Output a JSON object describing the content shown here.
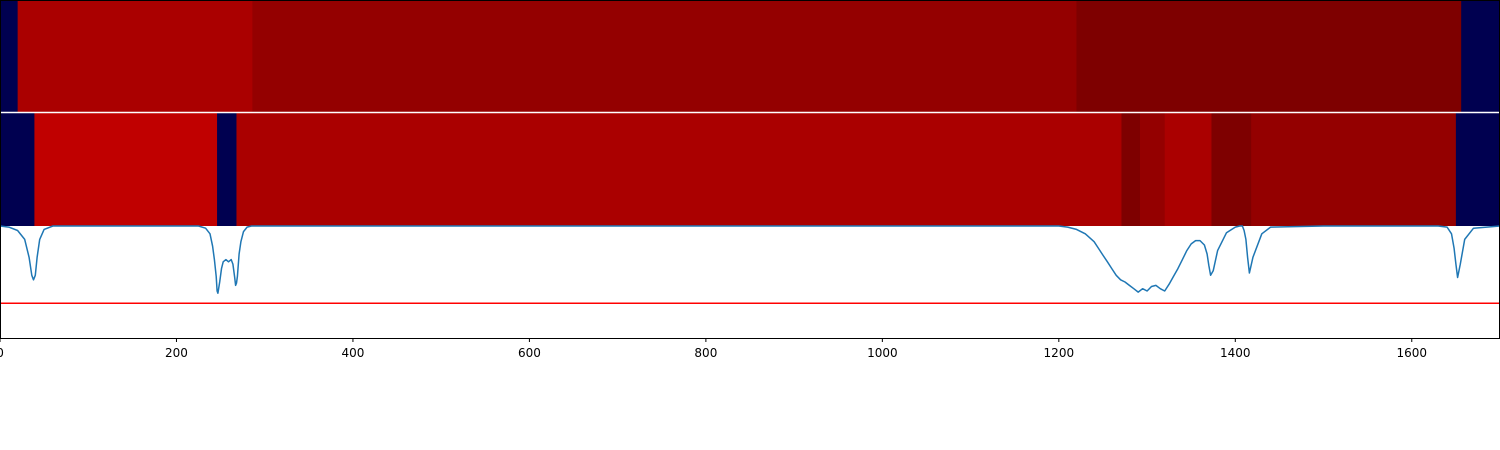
{
  "chart_data": {
    "type": "heatmap",
    "x_ticks": [
      0,
      200,
      400,
      600,
      800,
      1000,
      1200,
      1400,
      1600
    ],
    "x_tick_labels": [
      "0",
      "200",
      "400",
      "600",
      "800",
      "1000",
      "1200",
      "1400",
      "1600"
    ],
    "xlim": [
      0,
      1700
    ],
    "colors": {
      "background_segment": "#000050",
      "separator": "#ffffff",
      "line_trace": "#1f77b4",
      "threshold_line": "#ff0000",
      "axes": "#000000"
    },
    "heatmap_rows": [
      {
        "segments": [
          {
            "start": 0,
            "end": 20,
            "color": "#000050"
          },
          {
            "start": 20,
            "end": 286,
            "color": "#aa0000"
          },
          {
            "start": 286,
            "end": 1220,
            "color": "#940000"
          },
          {
            "start": 1220,
            "end": 1656,
            "color": "#7e0000"
          },
          {
            "start": 1656,
            "end": 1700,
            "color": "#000050"
          }
        ]
      },
      {
        "segments": [
          {
            "start": 0,
            "end": 39,
            "color": "#000050"
          },
          {
            "start": 39,
            "end": 246,
            "color": "#c00000"
          },
          {
            "start": 246,
            "end": 268,
            "color": "#000050"
          },
          {
            "start": 268,
            "end": 1271,
            "color": "#aa0000"
          },
          {
            "start": 1271,
            "end": 1292,
            "color": "#7e0000"
          },
          {
            "start": 1292,
            "end": 1320,
            "color": "#940000"
          },
          {
            "start": 1320,
            "end": 1373,
            "color": "#aa0000"
          },
          {
            "start": 1373,
            "end": 1418,
            "color": "#7e0000"
          },
          {
            "start": 1418,
            "end": 1650,
            "color": "#940000"
          },
          {
            "start": 1650,
            "end": 1700,
            "color": "#000050"
          }
        ]
      }
    ],
    "line_series": {
      "ylim": [
        0,
        1
      ],
      "threshold": 0.31,
      "x": [
        0,
        10,
        20,
        28,
        33,
        36,
        38,
        40,
        42,
        45,
        50,
        60,
        100,
        150,
        200,
        225,
        233,
        238,
        241,
        243,
        245,
        246,
        247,
        249,
        251,
        253,
        256,
        259,
        262,
        264,
        266,
        267,
        268,
        269,
        271,
        273,
        276,
        280,
        285,
        290,
        300,
        350,
        400,
        500,
        600,
        700,
        800,
        900,
        1000,
        1100,
        1200,
        1210,
        1220,
        1230,
        1240,
        1245,
        1250,
        1255,
        1260,
        1265,
        1270,
        1275,
        1280,
        1285,
        1290,
        1295,
        1300,
        1305,
        1310,
        1315,
        1320,
        1325,
        1330,
        1335,
        1340,
        1345,
        1350,
        1355,
        1360,
        1365,
        1368,
        1370,
        1372,
        1375,
        1380,
        1390,
        1400,
        1405,
        1408,
        1410,
        1412,
        1414,
        1416,
        1420,
        1430,
        1440,
        1500,
        1600,
        1630,
        1640,
        1645,
        1648,
        1650,
        1652,
        1655,
        1660,
        1670,
        1700
      ],
      "y": [
        1.0,
        0.99,
        0.96,
        0.88,
        0.72,
        0.56,
        0.52,
        0.56,
        0.72,
        0.88,
        0.97,
        1.0,
        1.0,
        1.0,
        1.0,
        1.0,
        0.98,
        0.93,
        0.82,
        0.7,
        0.55,
        0.42,
        0.4,
        0.5,
        0.62,
        0.68,
        0.7,
        0.68,
        0.7,
        0.66,
        0.54,
        0.47,
        0.49,
        0.55,
        0.75,
        0.86,
        0.95,
        0.99,
        1.0,
        1.0,
        1.0,
        1.0,
        1.0,
        1.0,
        1.0,
        1.0,
        1.0,
        1.0,
        1.0,
        1.0,
        1.0,
        0.99,
        0.97,
        0.93,
        0.86,
        0.8,
        0.74,
        0.68,
        0.62,
        0.56,
        0.52,
        0.5,
        0.47,
        0.44,
        0.41,
        0.44,
        0.42,
        0.46,
        0.47,
        0.44,
        0.42,
        0.48,
        0.55,
        0.62,
        0.7,
        0.78,
        0.84,
        0.87,
        0.87,
        0.83,
        0.75,
        0.65,
        0.56,
        0.6,
        0.78,
        0.94,
        0.99,
        1.0,
        1.0,
        0.96,
        0.88,
        0.72,
        0.58,
        0.72,
        0.93,
        0.99,
        1.0,
        1.0,
        1.0,
        0.99,
        0.93,
        0.8,
        0.66,
        0.54,
        0.66,
        0.88,
        0.98,
        1.0
      ]
    }
  }
}
